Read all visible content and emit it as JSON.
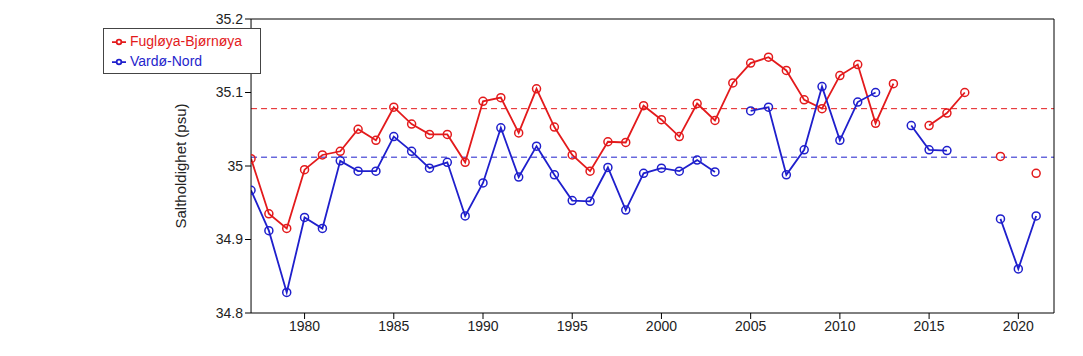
{
  "chart_data": {
    "type": "line",
    "y_label": "Saltholdighet (psu)",
    "x": [
      1977,
      1978,
      1979,
      1980,
      1981,
      1982,
      1983,
      1984,
      1985,
      1986,
      1987,
      1988,
      1989,
      1990,
      1991,
      1992,
      1993,
      1994,
      1995,
      1996,
      1997,
      1998,
      1999,
      2000,
      2001,
      2002,
      2003,
      2004,
      2005,
      2006,
      2007,
      2008,
      2009,
      2010,
      2011,
      2012,
      2013,
      2014,
      2015,
      2016,
      2017,
      2018,
      2019,
      2020,
      2021
    ],
    "series": [
      {
        "name": "Fugløya-Bjørnøya",
        "color": "#e31a1c",
        "marker": "circle",
        "mean": 35.078,
        "values": [
          35.01,
          34.935,
          34.915,
          34.995,
          35.015,
          35.02,
          35.05,
          35.035,
          35.08,
          35.057,
          35.043,
          35.043,
          35.005,
          35.088,
          35.093,
          35.045,
          35.105,
          35.053,
          35.015,
          34.993,
          35.033,
          35.032,
          35.082,
          35.063,
          35.04,
          35.085,
          35.062,
          35.113,
          35.14,
          35.148,
          35.13,
          35.09,
          35.078,
          35.123,
          35.138,
          35.058,
          35.112,
          null,
          35.055,
          35.072,
          35.1,
          null,
          35.013,
          null,
          34.99
        ]
      },
      {
        "name": "Vardø-Nord",
        "color": "#1f1fcc",
        "marker": "circle",
        "mean": 35.012,
        "values": [
          34.967,
          34.912,
          34.828,
          34.93,
          34.915,
          35.007,
          34.993,
          34.993,
          35.04,
          35.02,
          34.997,
          35.005,
          34.932,
          34.977,
          35.052,
          34.985,
          35.027,
          34.988,
          34.953,
          34.952,
          34.998,
          34.94,
          34.99,
          34.997,
          34.993,
          35.008,
          34.992,
          null,
          35.075,
          35.08,
          34.988,
          35.022,
          35.108,
          35.035,
          35.087,
          35.1,
          null,
          35.055,
          35.022,
          35.021,
          null,
          null,
          34.928,
          34.86,
          34.932
        ]
      }
    ],
    "xlim": [
      1977,
      2022
    ],
    "xticks": [
      1980,
      1985,
      1990,
      1995,
      2000,
      2005,
      2010,
      2015,
      2020
    ],
    "ylim": [
      34.8,
      35.2
    ],
    "yticks": [
      34.8,
      34.9,
      35,
      35.1,
      35.2
    ],
    "grid": false,
    "legend": "upper left"
  }
}
